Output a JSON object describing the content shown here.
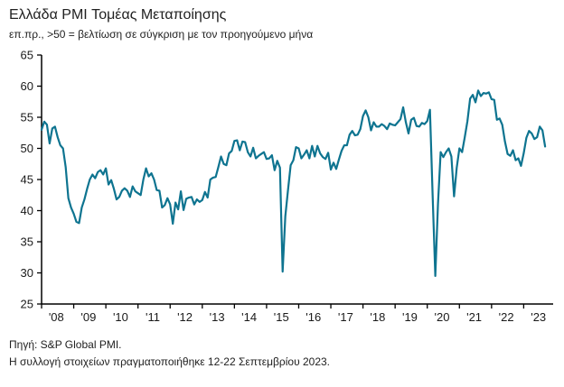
{
  "header": {
    "title": "Ελλάδα PMI Τομέας Μεταποίησης",
    "subtitle": "επ.πρ., >50 = βελτίωση σε σύγκριση με τον προηγούμενο μήνα"
  },
  "footer": {
    "source": "Πηγή: S&P Global PMI.",
    "note": "Η συλλογή στοιχείων πραγματοποιήθηκε 12-22 Σεπτεμβρίου 2023."
  },
  "chart_data": {
    "type": "line",
    "title": "Ελλάδα PMI Τομέας Μεταποίησης",
    "subtitle": "επ.πρ., >50 = βελτίωση σε σύγκριση με τον προηγούμενο μήνα",
    "frequency": "monthly",
    "x_labels": [
      "'08",
      "'09",
      "'10",
      "'11",
      "'12",
      "'13",
      "'14",
      "'15",
      "'16",
      "'17",
      "'18",
      "'19",
      "'20",
      "'21",
      "'22",
      "'23"
    ],
    "values": [
      53.0,
      54.3,
      53.8,
      50.8,
      53.2,
      53.5,
      51.8,
      50.5,
      50.0,
      47.0,
      42.0,
      40.5,
      39.5,
      38.2,
      38.0,
      40.5,
      41.8,
      43.5,
      45.0,
      45.8,
      45.2,
      46.2,
      46.5,
      45.8,
      46.8,
      44.2,
      44.9,
      43.5,
      41.8,
      42.2,
      43.2,
      43.6,
      43.2,
      42.2,
      43.9,
      43.1,
      42.8,
      42.5,
      45.0,
      46.8,
      45.5,
      46.0,
      45.0,
      43.3,
      43.2,
      40.5,
      40.9,
      42.0,
      41.0,
      37.9,
      41.3,
      40.2,
      43.1,
      40.1,
      41.9,
      42.1,
      42.2,
      41.0,
      41.8,
      41.4,
      41.7,
      43.0,
      42.1,
      45.0,
      45.3,
      45.4,
      47.0,
      48.7,
      47.5,
      47.3,
      49.2,
      49.6,
      51.2,
      51.3,
      49.7,
      51.1,
      51.0,
      49.4,
      48.7,
      50.1,
      48.4,
      48.8,
      49.1,
      49.4,
      48.3,
      48.4,
      48.9,
      46.5,
      48.0,
      46.9,
      30.2,
      39.1,
      43.3,
      47.3,
      48.1,
      50.2,
      50.0,
      48.4,
      49.0,
      49.7,
      48.4,
      50.4,
      48.7,
      50.4,
      49.2,
      48.6,
      48.3,
      49.3,
      46.6,
      47.7,
      46.7,
      48.2,
      49.6,
      50.5,
      50.5,
      52.2,
      52.8,
      52.1,
      52.2,
      53.1,
      55.2,
      56.1,
      55.0,
      52.9,
      54.2,
      53.5,
      53.5,
      53.9,
      53.6,
      53.1,
      54.0,
      53.8,
      53.7,
      54.2,
      54.7,
      56.6,
      54.2,
      52.4,
      54.6,
      54.9,
      53.6,
      53.5,
      54.1,
      53.9,
      54.4,
      56.2,
      42.5,
      29.5,
      41.1,
      49.4,
      48.6,
      49.4,
      50.0,
      48.7,
      42.3,
      46.9,
      50.0,
      49.4,
      51.8,
      54.4,
      58.0,
      58.6,
      57.4,
      59.3,
      58.4,
      58.9,
      58.8,
      59.0,
      57.9,
      57.8,
      54.6,
      54.8,
      53.8,
      51.1,
      49.1,
      48.8,
      49.7,
      48.1,
      48.4,
      47.2,
      49.2,
      51.7,
      52.8,
      52.4,
      51.5,
      51.8,
      53.5,
      52.9,
      50.3
    ],
    "ylim": [
      25,
      65
    ],
    "yticks": [
      25,
      30,
      35,
      40,
      45,
      50,
      55,
      60,
      65
    ],
    "line_color": "#0e7490",
    "axis_color": "#000000",
    "text_color": "#1a1a1a",
    "grid": "off",
    "legend": "none"
  }
}
